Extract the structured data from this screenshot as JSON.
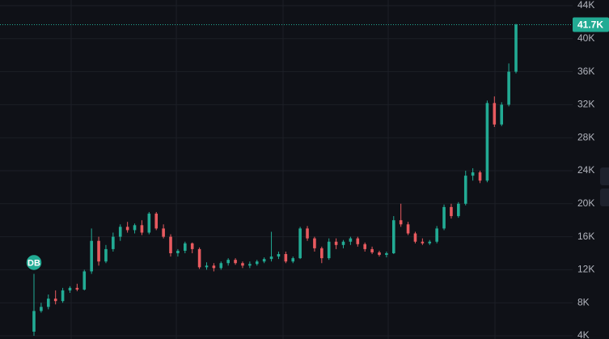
{
  "chart_data": {
    "type": "candlestick",
    "up_color": "#22ab94",
    "down_color": "#e85a5f",
    "grid": true,
    "ylim": [
      4000,
      44000
    ],
    "yticks": [
      {
        "value": 4000,
        "label": "4K"
      },
      {
        "value": 8000,
        "label": "8K"
      },
      {
        "value": 12000,
        "label": "12K"
      },
      {
        "value": 16000,
        "label": "16K"
      },
      {
        "value": 20000,
        "label": "20K"
      },
      {
        "value": 24000,
        "label": "24K"
      },
      {
        "value": 28000,
        "label": "28K"
      },
      {
        "value": 32000,
        "label": "32K"
      },
      {
        "value": 36000,
        "label": "36K"
      },
      {
        "value": 40000,
        "label": "40K"
      },
      {
        "value": 44000,
        "label": "44K"
      }
    ],
    "last_price": {
      "value": 41700,
      "label": "41.7K"
    },
    "marker": {
      "label": "DB"
    },
    "open": [
      4500,
      7000,
      7500,
      8500,
      8200,
      9500,
      9800,
      9600,
      11800,
      15500,
      13000,
      14500,
      16000,
      17200,
      16800,
      17400,
      16500,
      18800,
      17000,
      16000,
      14000,
      14300,
      15200,
      14500,
      12300,
      12500,
      12200,
      12800,
      13200,
      12800,
      12500,
      12700,
      13000,
      13300,
      13600,
      13900,
      13000,
      13400,
      17000,
      15800,
      14600,
      13400,
      15400,
      15000,
      15400,
      15800,
      15100,
      14500,
      14100,
      13800,
      14000,
      18000,
      17500,
      16400,
      15400,
      15200,
      15400,
      17000,
      19600,
      18500,
      20000,
      23400,
      23800,
      22800,
      32200,
      29600,
      32000,
      36000
    ],
    "high": [
      11500,
      8000,
      9000,
      9500,
      9800,
      10000,
      10300,
      12000,
      17000,
      16000,
      15000,
      16500,
      17500,
      17800,
      17600,
      18000,
      19000,
      19000,
      17500,
      16300,
      14500,
      15400,
      15300,
      14700,
      12900,
      12800,
      13000,
      13400,
      13400,
      13000,
      13000,
      13200,
      13500,
      16600,
      14200,
      14200,
      13600,
      17200,
      17300,
      16000,
      14800,
      15800,
      15800,
      15600,
      16000,
      16000,
      15300,
      14800,
      14300,
      14200,
      18500,
      20000,
      17800,
      16600,
      15800,
      15600,
      17300,
      19900,
      20000,
      20200,
      24000,
      24300,
      24000,
      32500,
      33000,
      32300,
      37000,
      41800
    ],
    "low": [
      4000,
      6800,
      7200,
      7800,
      8000,
      9200,
      9400,
      9500,
      11500,
      12500,
      12800,
      14200,
      15500,
      16500,
      16400,
      16200,
      16300,
      16800,
      15800,
      13600,
      13600,
      14000,
      14000,
      12100,
      12000,
      11800,
      12000,
      12500,
      12600,
      12200,
      12200,
      12500,
      12800,
      13000,
      13300,
      12800,
      12800,
      13300,
      15500,
      14200,
      12800,
      13200,
      14500,
      14600,
      15000,
      14800,
      14200,
      13900,
      13600,
      13500,
      13900,
      17200,
      16200,
      15200,
      15000,
      15000,
      15200,
      16800,
      18200,
      18300,
      19800,
      22800,
      22500,
      22600,
      29300,
      29400,
      31800,
      35800
    ],
    "close": [
      7000,
      7500,
      8500,
      8200,
      9500,
      9800,
      9600,
      11800,
      15500,
      13000,
      14500,
      16000,
      17200,
      16800,
      17400,
      16500,
      18800,
      17000,
      16000,
      14000,
      14300,
      15200,
      14500,
      12300,
      12500,
      12200,
      12800,
      13200,
      12800,
      12500,
      12700,
      13000,
      13300,
      13600,
      13900,
      13000,
      13400,
      17000,
      15800,
      14600,
      13400,
      15400,
      15000,
      15400,
      15800,
      15100,
      14500,
      14100,
      13800,
      14000,
      18000,
      17500,
      16400,
      15400,
      15200,
      15400,
      17000,
      19600,
      18500,
      20000,
      23400,
      23800,
      22800,
      32200,
      29600,
      32000,
      36000,
      41700
    ]
  }
}
